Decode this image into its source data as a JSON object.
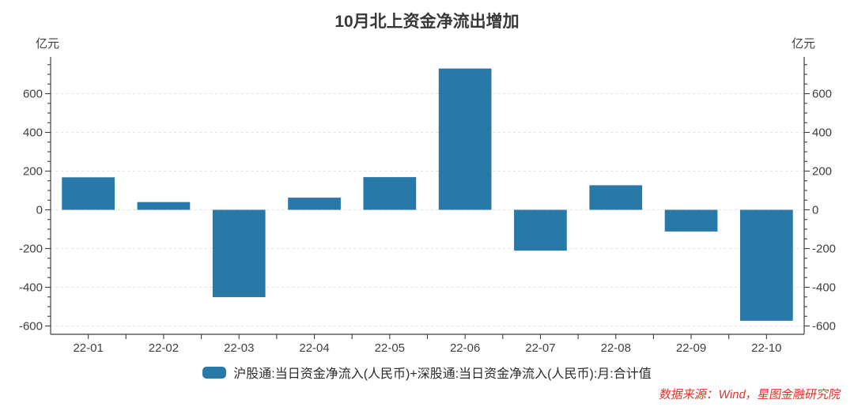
{
  "title": "10月北上资金净流出增加",
  "y_axis": {
    "unit_left": "亿元",
    "unit_right": "亿元"
  },
  "legend": {
    "label": "沪股通:当日资金净流入(人民币)+深股通:当日资金净流入(人民币):月:合计值"
  },
  "source": "数据来源：Wind，星图金融研究院",
  "colors": {
    "bar": "#2878a8",
    "axis": "#3f3f3f",
    "tick_label": "#3f3f3f",
    "grid": "#e2e2e2",
    "title": "#383838",
    "source": "#e53228",
    "background": "#ffffff"
  },
  "chart_data": {
    "type": "bar",
    "title": "10月北上资金净流出增加",
    "ylabel": "亿元",
    "categories": [
      "22-01",
      "22-02",
      "22-03",
      "22-04",
      "22-05",
      "22-06",
      "22-07",
      "22-08",
      "22-09",
      "22-10"
    ],
    "values": [
      168,
      40,
      -451,
      63,
      169,
      730,
      -211,
      127,
      -112,
      -573
    ],
    "series_name": "沪股通:当日资金净流入(人民币)+深股通:当日资金净流入(人民币):月:合计值",
    "ylim": [
      -643,
      790
    ],
    "yticks_labeled": [
      -600,
      -400,
      -200,
      0,
      200,
      400,
      600
    ],
    "ytick_minor_step": 50,
    "ytick_minor_range": [
      -600,
      750
    ],
    "grid": "horizontal-dashed-at-labeled-ticks",
    "dual_y_axis": true,
    "legend_position": "bottom-center"
  }
}
